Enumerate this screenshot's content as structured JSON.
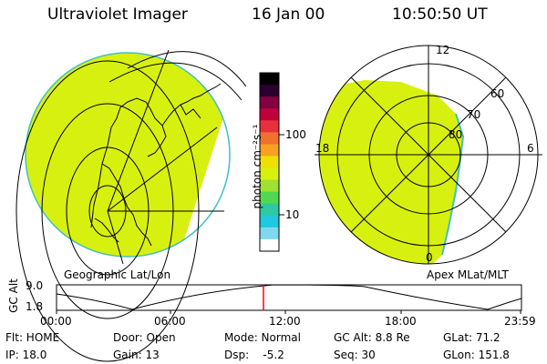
{
  "header": {
    "title": "Ultraviolet Imager",
    "date": "16 Jan 00",
    "time": "10:50:50 UT"
  },
  "colorbar": {
    "unit": "photon cm⁻²s⁻¹",
    "ticks": [
      "100",
      "10"
    ],
    "colors": [
      "#000000",
      "#2a0030",
      "#800040",
      "#c0003c",
      "#e8303c",
      "#f07030",
      "#f8a020",
      "#f0e000",
      "#d8f010",
      "#a0e030",
      "#50d850",
      "#30c8a0",
      "#20c8e0",
      "#80d8f0",
      "#ffffff"
    ]
  },
  "geo_panel": {
    "caption": "Geographic Lat/Lon"
  },
  "polar_panel": {
    "caption": "Apex MLat/MLT",
    "mlt_labels": {
      "top": "12",
      "left": "18",
      "right": "6",
      "bottom": "0"
    },
    "lat_labels": [
      "60",
      "70",
      "80"
    ]
  },
  "timeline": {
    "axis_label": "GC Alt",
    "y_ticks": [
      "9.0",
      "1.8"
    ],
    "x_ticks": [
      "00:00",
      "06:00",
      "12:00",
      "18:00",
      "23:59"
    ],
    "marker_color": "#ff0000"
  },
  "info": {
    "flt": "Flt: HOME",
    "ip": "IP: 18.0",
    "door": "Door: Open",
    "gain": "Gain: 13",
    "mode": "Mode: Normal",
    "dsp": "Dsp:    -5.2",
    "gc_alt": "GC Alt: 8.8 Re",
    "seq": "Seq: 30",
    "glat": "GLat: 71.2",
    "glon": "GLon: 151.8"
  },
  "image_color": "#d8f010"
}
